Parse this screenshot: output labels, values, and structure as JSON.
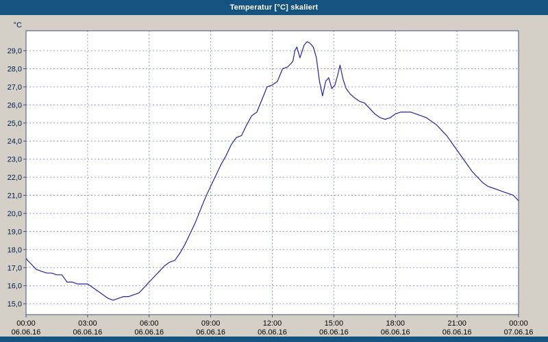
{
  "window": {
    "title": "Temperatur [°C] skaliert",
    "titlebar_color": "#145380",
    "background_color": "#d4d0c8"
  },
  "chart_data": {
    "type": "line",
    "title": "Temperatur [°C] skaliert",
    "y_axis_label": "°C",
    "ylim": [
      14.4,
      30.1
    ],
    "xlim_hours": [
      0,
      24
    ],
    "grid": true,
    "grid_color": "#8f9fc8",
    "line_color": "#2222aa",
    "plot_background": "#ffffff",
    "y_ticks": [
      {
        "value": 15,
        "label": "15,0"
      },
      {
        "value": 16,
        "label": "16,0"
      },
      {
        "value": 17,
        "label": "17,0"
      },
      {
        "value": 18,
        "label": "18,0"
      },
      {
        "value": 19,
        "label": "19,0"
      },
      {
        "value": 20,
        "label": "20,0"
      },
      {
        "value": 21,
        "label": "21,0"
      },
      {
        "value": 22,
        "label": "22,0"
      },
      {
        "value": 23,
        "label": "23,0"
      },
      {
        "value": 24,
        "label": "24,0"
      },
      {
        "value": 25,
        "label": "25,0"
      },
      {
        "value": 26,
        "label": "26,0"
      },
      {
        "value": 27,
        "label": "27,0"
      },
      {
        "value": 28,
        "label": "28,0"
      },
      {
        "value": 29,
        "label": "29,0"
      }
    ],
    "x_ticks": [
      {
        "hour": 0,
        "time": "00:00",
        "date": "06.06.16"
      },
      {
        "hour": 3,
        "time": "03:00",
        "date": "06.06.16"
      },
      {
        "hour": 6,
        "time": "06:00",
        "date": "06.06.16"
      },
      {
        "hour": 9,
        "time": "09:00",
        "date": "06.06.16"
      },
      {
        "hour": 12,
        "time": "12:00",
        "date": "06.06.16"
      },
      {
        "hour": 15,
        "time": "15:00",
        "date": "06.06.16"
      },
      {
        "hour": 18,
        "time": "18:00",
        "date": "06.06.16"
      },
      {
        "hour": 21,
        "time": "21:00",
        "date": "06.06.16"
      },
      {
        "hour": 24,
        "time": "00:00",
        "date": "07.06.16"
      }
    ],
    "series": [
      {
        "name": "Temperatur",
        "x_hours": [
          0,
          0.25,
          0.5,
          0.75,
          1,
          1.25,
          1.5,
          1.75,
          2,
          2.25,
          2.5,
          2.75,
          3,
          3.25,
          3.5,
          3.75,
          4,
          4.25,
          4.5,
          4.75,
          5,
          5.25,
          5.5,
          5.75,
          6,
          6.25,
          6.5,
          6.75,
          7,
          7.25,
          7.5,
          7.75,
          8,
          8.25,
          8.5,
          8.75,
          9,
          9.25,
          9.5,
          9.75,
          10,
          10.25,
          10.5,
          10.75,
          11,
          11.25,
          11.5,
          11.75,
          12,
          12.25,
          12.5,
          12.75,
          13,
          13.1,
          13.2,
          13.35,
          13.55,
          13.7,
          13.85,
          14,
          14.15,
          14.3,
          14.45,
          14.6,
          14.75,
          14.9,
          15.05,
          15.2,
          15.3,
          15.45,
          15.6,
          15.8,
          16,
          16.25,
          16.5,
          16.75,
          17,
          17.25,
          17.5,
          17.75,
          18,
          18.25,
          18.5,
          18.75,
          19,
          19.25,
          19.5,
          19.75,
          20,
          20.25,
          20.5,
          20.75,
          21,
          21.25,
          21.5,
          21.75,
          22,
          22.25,
          22.5,
          22.75,
          23,
          23.25,
          23.5,
          23.75,
          24
        ],
        "values": [
          17.5,
          17.2,
          16.9,
          16.8,
          16.7,
          16.7,
          16.6,
          16.6,
          16.2,
          16.2,
          16.1,
          16.1,
          16.1,
          15.9,
          15.7,
          15.5,
          15.3,
          15.2,
          15.3,
          15.4,
          15.4,
          15.5,
          15.6,
          15.9,
          16.2,
          16.5,
          16.8,
          17.1,
          17.3,
          17.4,
          17.8,
          18.3,
          18.9,
          19.5,
          20.2,
          20.9,
          21.5,
          22.1,
          22.7,
          23.2,
          23.8,
          24.2,
          24.3,
          24.9,
          25.4,
          25.6,
          26.3,
          27.0,
          27.1,
          27.3,
          28.0,
          28.1,
          28.4,
          29.0,
          29.2,
          28.6,
          29.3,
          29.5,
          29.4,
          29.2,
          28.6,
          27.3,
          26.5,
          27.3,
          27.5,
          26.9,
          27.1,
          27.7,
          28.2,
          27.4,
          26.9,
          26.6,
          26.4,
          26.2,
          26.1,
          25.8,
          25.5,
          25.3,
          25.2,
          25.3,
          25.5,
          25.6,
          25.6,
          25.6,
          25.5,
          25.4,
          25.3,
          25.1,
          24.9,
          24.6,
          24.3,
          23.9,
          23.5,
          23.1,
          22.7,
          22.3,
          22.0,
          21.7,
          21.5,
          21.4,
          21.3,
          21.2,
          21.1,
          21.0,
          20.7
        ]
      }
    ]
  }
}
